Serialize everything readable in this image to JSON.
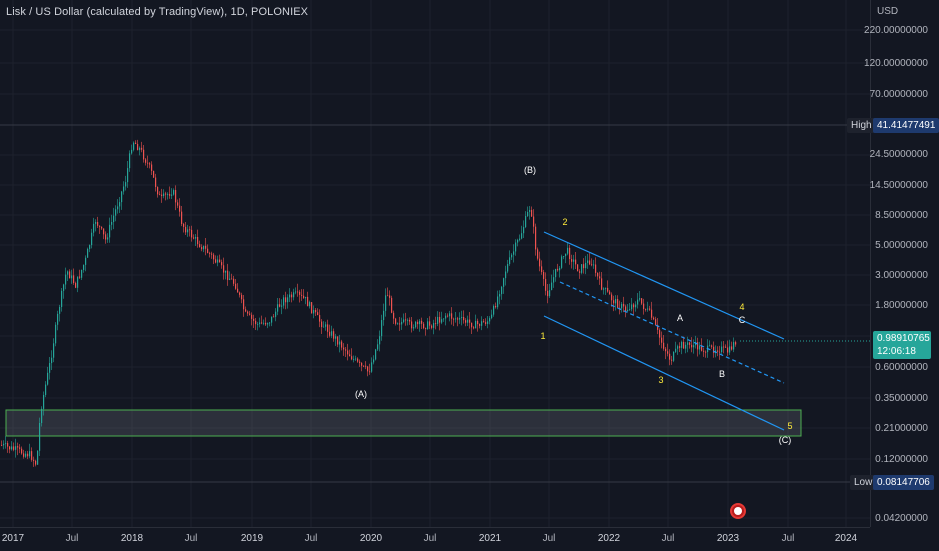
{
  "header": {
    "title": "Lisk / US Dollar (calculated by TradingView), 1D, POLONIEX"
  },
  "price_scale": {
    "currency": "USD",
    "labels": [
      "220.00000000",
      "120.00000000",
      "70.00000000",
      "41.41477491",
      "24.50000000",
      "14.50000000",
      "8.50000000",
      "5.00000000",
      "3.00000000",
      "1.80000000",
      "0.98910765",
      "0.60000000",
      "0.35000000",
      "0.21000000",
      "0.12000000",
      "0.08147706",
      "0.04200000"
    ],
    "high": {
      "label": "High",
      "value": "41.41477491"
    },
    "low": {
      "label": "Low",
      "value": "0.08147706"
    },
    "last": {
      "value": "0.98910765",
      "countdown": "12:06:18"
    }
  },
  "time_scale": {
    "labels": [
      "2017",
      "Jul",
      "2018",
      "Jul",
      "2019",
      "Jul",
      "2020",
      "Jul",
      "2021",
      "Jul",
      "2022",
      "Jul",
      "2023",
      "Jul",
      "2024"
    ]
  },
  "waves": {
    "big_A": "(A)",
    "big_B": "(B)",
    "big_C": "(C)",
    "w1": "1",
    "w2": "2",
    "w3": "3",
    "w4": "4",
    "w5": "5",
    "a": "A",
    "b": "B",
    "c": "C"
  },
  "colors": {
    "background": "#131722",
    "up": "#26a69a",
    "down": "#ef5350",
    "channel": "#2196f3",
    "wave_yellow": "#ffeb3b",
    "zone": "#4caf50",
    "last_price": "#26a69a",
    "badge": "#1e3a6e"
  },
  "icons": {
    "event_flag": "us-flag-event-icon"
  }
}
